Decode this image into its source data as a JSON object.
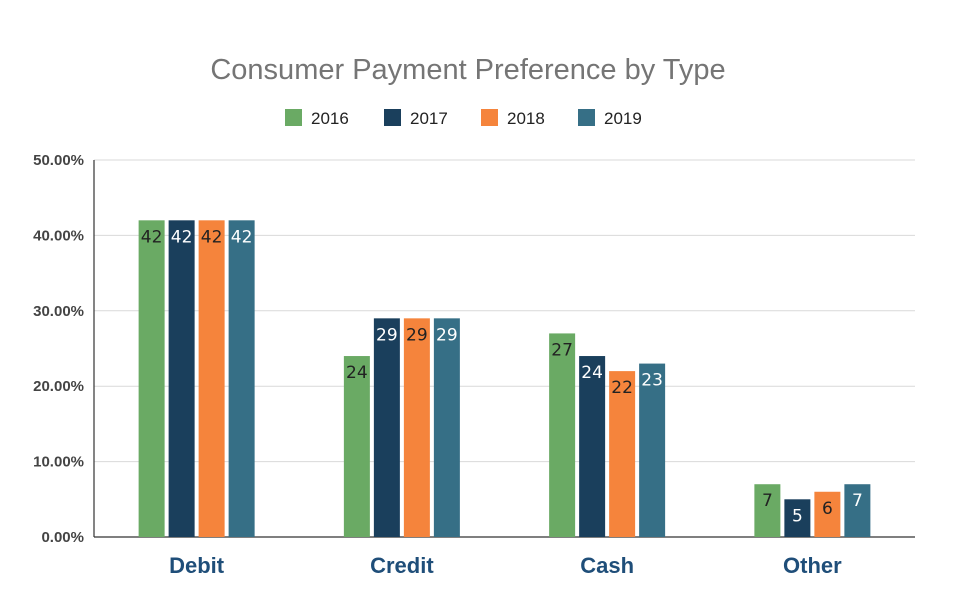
{
  "chart_data": {
    "type": "bar",
    "title": "Consumer Payment Preference by Type",
    "categories": [
      "Debit",
      "Credit",
      "Cash",
      "Other"
    ],
    "series": [
      {
        "name": "2016",
        "color": "#6aaa64",
        "label_color": "#222222",
        "values": [
          42,
          24,
          27,
          7
        ]
      },
      {
        "name": "2017",
        "color": "#1a3f5c",
        "label_color": "#ffffff",
        "values": [
          42,
          29,
          24,
          5
        ]
      },
      {
        "name": "2018",
        "color": "#f5843c",
        "label_color": "#222222",
        "values": [
          42,
          29,
          22,
          6
        ]
      },
      {
        "name": "2019",
        "color": "#366f86",
        "label_color": "#ffffff",
        "values": [
          42,
          29,
          23,
          7
        ]
      }
    ],
    "yticks": [
      "0.00%",
      "10.00%",
      "20.00%",
      "30.00%",
      "40.00%",
      "50.00%"
    ],
    "ylim": [
      0,
      50
    ],
    "grid": true,
    "legend_position": "top-center",
    "xlabel": "",
    "ylabel": ""
  }
}
